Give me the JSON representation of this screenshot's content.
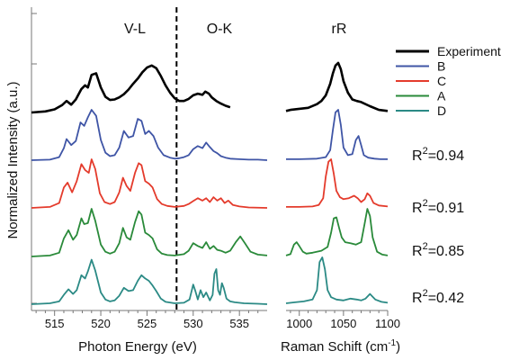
{
  "chart_data": {
    "type": "line",
    "ylabel": "Normalized Intensity (a.u.)",
    "panels": [
      {
        "label": "V-L",
        "xlabel": "Photon Energy (eV)",
        "xticks": [
          515,
          520,
          525,
          530,
          535
        ],
        "xlim": [
          512.5,
          538
        ]
      },
      {
        "label": "O-K"
      },
      {
        "label": "rR",
        "xlabel": "Raman Schift (cm",
        "xlabel_sup": "-1",
        "xlabel_suffix": ")",
        "xticks": [
          1000,
          1050,
          1100
        ],
        "xlim": [
          985,
          1100
        ]
      }
    ],
    "divider_energy": 528.2,
    "legend": [
      {
        "name": "Experiment",
        "color": "#000000"
      },
      {
        "name": "B",
        "color": "#3f55a6"
      },
      {
        "name": "C",
        "color": "#e43b2c"
      },
      {
        "name": "A",
        "color": "#2a8a3a"
      },
      {
        "name": "D",
        "color": "#2b8a85"
      }
    ],
    "series": [
      {
        "name": "Experiment",
        "color": "#000000",
        "r2": "",
        "xas": {
          "x": [
            512.5,
            514,
            515,
            515.8,
            516.3,
            516.8,
            517.3,
            517.9,
            518.3,
            518.6,
            519.0,
            519.5,
            520,
            520.5,
            521,
            521.5,
            522,
            522.5,
            523,
            523.5,
            524,
            524.5,
            525,
            525.5,
            526,
            526.5,
            527,
            527.5,
            528,
            528.5,
            529,
            529.5,
            530,
            530.5,
            531,
            531.3,
            531.7,
            532,
            532.5,
            533,
            533.5,
            534
          ],
          "y": [
            0,
            0.02,
            0.06,
            0.14,
            0.22,
            0.15,
            0.25,
            0.45,
            0.52,
            0.48,
            0.72,
            0.75,
            0.48,
            0.3,
            0.24,
            0.25,
            0.29,
            0.35,
            0.44,
            0.55,
            0.65,
            0.77,
            0.86,
            0.9,
            0.85,
            0.7,
            0.52,
            0.38,
            0.27,
            0.22,
            0.22,
            0.26,
            0.33,
            0.36,
            0.34,
            0.4,
            0.36,
            0.29,
            0.22,
            0.17,
            0.13,
            0.1
          ]
        },
        "raman": {
          "x": [
            985,
            990,
            1000,
            1010,
            1020,
            1025,
            1030,
            1035,
            1038,
            1041,
            1044,
            1047,
            1050,
            1055,
            1060,
            1065,
            1070,
            1080,
            1090,
            1100
          ],
          "y": [
            0.03,
            0.05,
            0.07,
            0.09,
            0.16,
            0.22,
            0.33,
            0.55,
            0.75,
            0.9,
            0.95,
            0.83,
            0.6,
            0.38,
            0.25,
            0.22,
            0.2,
            0.12,
            0.05,
            0.03
          ]
        }
      },
      {
        "name": "B",
        "color": "#3f55a6",
        "r2": "R2=0.94",
        "xas": {
          "x": [
            512.5,
            514.5,
            515.5,
            516,
            516.3,
            516.8,
            517.3,
            517.8,
            518.2,
            518.6,
            519.0,
            519.5,
            520,
            520.5,
            521,
            521.5,
            522,
            522.5,
            523,
            523.5,
            524,
            524.4,
            524.8,
            525.2,
            525.7,
            526.2,
            526.8,
            527.5,
            528,
            528.5,
            529,
            529.5,
            530,
            530.5,
            531,
            531.4,
            531.8,
            532.2,
            532.6,
            533,
            533.5,
            534,
            535,
            536,
            537,
            538
          ],
          "y": [
            0,
            0.01,
            0.06,
            0.24,
            0.42,
            0.3,
            0.38,
            0.75,
            0.68,
            0.85,
            1.0,
            0.88,
            0.4,
            0.15,
            0.08,
            0.1,
            0.25,
            0.58,
            0.45,
            0.48,
            0.82,
            0.78,
            0.52,
            0.58,
            0.48,
            0.25,
            0.1,
            0.05,
            0.03,
            0.04,
            0.06,
            0.1,
            0.22,
            0.28,
            0.24,
            0.35,
            0.26,
            0.18,
            0.14,
            0.08,
            0.05,
            0.03,
            0.02,
            0.01,
            0.01,
            0
          ]
        },
        "raman": {
          "x": [
            985,
            1000,
            1020,
            1030,
            1035,
            1038,
            1041,
            1044,
            1047,
            1050,
            1055,
            1060,
            1064,
            1067,
            1070,
            1073,
            1078,
            1085,
            1092,
            1100
          ],
          "y": [
            0.02,
            0.02,
            0.03,
            0.06,
            0.2,
            0.6,
            0.95,
            1.0,
            0.7,
            0.25,
            0.1,
            0.12,
            0.4,
            0.48,
            0.3,
            0.1,
            0.05,
            0.03,
            0.02,
            0.02
          ]
        }
      },
      {
        "name": "C",
        "color": "#e43b2c",
        "r2": "R2=0.91",
        "xas": {
          "x": [
            512.5,
            514.5,
            515.5,
            516,
            516.4,
            516.9,
            517.4,
            517.9,
            518.3,
            518.7,
            519.0,
            519.4,
            519.9,
            520.4,
            521,
            521.5,
            522,
            522.4,
            522.8,
            523.2,
            523.7,
            524.1,
            524.4,
            524.8,
            525.2,
            525.6,
            526.1,
            526.6,
            527.2,
            528,
            529,
            529.5,
            530,
            530.5,
            531,
            531.4,
            531.8,
            532.2,
            532.6,
            533,
            533.4,
            533.8,
            534.3,
            535,
            536,
            538
          ],
          "y": [
            0,
            0.02,
            0.1,
            0.42,
            0.52,
            0.32,
            0.55,
            0.9,
            0.78,
            0.72,
            1.0,
            0.8,
            0.3,
            0.12,
            0.08,
            0.12,
            0.32,
            0.62,
            0.45,
            0.35,
            0.72,
            0.92,
            0.88,
            0.55,
            0.5,
            0.42,
            0.18,
            0.08,
            0.04,
            0.02,
            0.04,
            0.08,
            0.14,
            0.2,
            0.15,
            0.2,
            0.12,
            0.22,
            0.15,
            0.2,
            0.1,
            0.15,
            0.06,
            0.03,
            0.01,
            0
          ]
        },
        "raman": {
          "x": [
            985,
            1000,
            1015,
            1022,
            1027,
            1030,
            1033,
            1036,
            1039,
            1042,
            1046,
            1050,
            1056,
            1062,
            1066,
            1070,
            1074,
            1077,
            1080,
            1084,
            1090,
            1100
          ],
          "y": [
            0.02,
            0.02,
            0.03,
            0.06,
            0.2,
            0.65,
            0.95,
            1.0,
            0.7,
            0.35,
            0.22,
            0.18,
            0.2,
            0.25,
            0.2,
            0.12,
            0.18,
            0.3,
            0.25,
            0.1,
            0.05,
            0.03
          ]
        }
      },
      {
        "name": "A",
        "color": "#2a8a3a",
        "r2": "R2=0.85",
        "xas": {
          "x": [
            512.5,
            514.5,
            515.5,
            516,
            516.5,
            517,
            517.4,
            517.9,
            518.2,
            518.6,
            519.0,
            519.4,
            520,
            520.5,
            521,
            521.5,
            522,
            522.4,
            522.8,
            523.2,
            523.7,
            524.1,
            524.4,
            524.8,
            525.2,
            525.6,
            526.1,
            526.6,
            527.2,
            528,
            529,
            529.5,
            530,
            530.5,
            531,
            531.4,
            531.8,
            532.2,
            532.6,
            533,
            533.5,
            534,
            534.6,
            535.1,
            535.6,
            536.2,
            537,
            538
          ],
          "y": [
            0,
            0.02,
            0.08,
            0.38,
            0.55,
            0.35,
            0.45,
            0.8,
            0.68,
            0.7,
            1.0,
            0.75,
            0.25,
            0.1,
            0.06,
            0.1,
            0.28,
            0.6,
            0.4,
            0.35,
            0.72,
            0.95,
            0.88,
            0.5,
            0.45,
            0.38,
            0.15,
            0.06,
            0.03,
            0.02,
            0.05,
            0.12,
            0.28,
            0.22,
            0.18,
            0.3,
            0.16,
            0.22,
            0.14,
            0.12,
            0.08,
            0.12,
            0.3,
            0.42,
            0.28,
            0.1,
            0.04,
            0.02
          ]
        },
        "raman": {
          "x": [
            985,
            990,
            994,
            997,
            1000,
            1004,
            1008,
            1015,
            1025,
            1032,
            1036,
            1039,
            1042,
            1045,
            1048,
            1052,
            1058,
            1064,
            1070,
            1074,
            1077,
            1080,
            1083,
            1088,
            1094,
            1100
          ],
          "y": [
            0.02,
            0.05,
            0.25,
            0.3,
            0.22,
            0.1,
            0.06,
            0.08,
            0.12,
            0.2,
            0.5,
            0.8,
            0.82,
            0.6,
            0.4,
            0.3,
            0.28,
            0.25,
            0.3,
            0.7,
            1.0,
            0.85,
            0.4,
            0.1,
            0.04,
            0.02
          ]
        }
      },
      {
        "name": "D",
        "color": "#2b8a85",
        "r2": "R2=0.42",
        "xas": {
          "x": [
            512.5,
            514.5,
            515.5,
            516,
            516.5,
            517,
            517.4,
            517.9,
            518.3,
            518.6,
            519.0,
            519.4,
            520,
            520.5,
            521,
            521.5,
            522,
            522.5,
            523,
            523.5,
            524,
            524.4,
            524.8,
            525.2,
            525.6,
            526,
            526.5,
            527,
            528,
            529,
            529.6,
            530,
            530.2,
            530.5,
            530.8,
            531.1,
            531.4,
            531.8,
            532.1,
            532.3,
            532.5,
            532.7,
            532.9,
            533.1,
            533.3,
            533.6,
            534,
            534.5,
            535.5,
            537,
            538
          ],
          "y": [
            0,
            0.02,
            0.06,
            0.2,
            0.32,
            0.22,
            0.3,
            0.62,
            0.55,
            0.7,
            0.95,
            0.72,
            0.25,
            0.1,
            0.06,
            0.08,
            0.18,
            0.35,
            0.28,
            0.3,
            0.5,
            0.62,
            0.55,
            0.5,
            0.4,
            0.28,
            0.12,
            0.05,
            0.02,
            0.03,
            0.1,
            0.42,
            0.3,
            0.1,
            0.3,
            0.15,
            0.25,
            0.08,
            0.2,
            0.65,
            0.75,
            0.3,
            0.2,
            0.45,
            0.35,
            0.12,
            0.06,
            0.04,
            0.02,
            0.01,
            0
          ]
        },
        "raman": {
          "x": [
            985,
            995,
            1005,
            1015,
            1020,
            1023,
            1026,
            1029,
            1032,
            1036,
            1042,
            1050,
            1058,
            1065,
            1070,
            1075,
            1080,
            1086,
            1093,
            1100
          ],
          "y": [
            0.02,
            0.04,
            0.06,
            0.1,
            0.3,
            0.9,
            1.0,
            0.75,
            0.3,
            0.15,
            0.1,
            0.08,
            0.12,
            0.1,
            0.08,
            0.12,
            0.22,
            0.1,
            0.05,
            0.03
          ]
        }
      }
    ]
  }
}
